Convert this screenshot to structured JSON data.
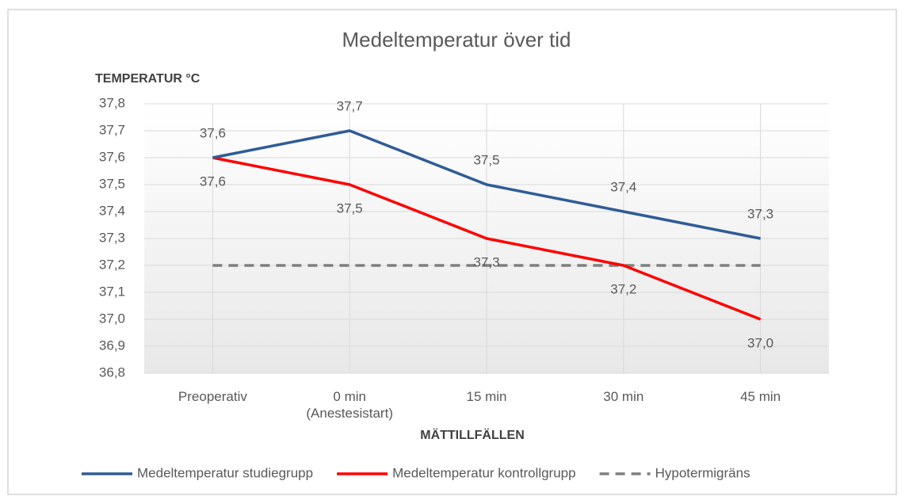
{
  "chart_data": {
    "type": "line",
    "title": "Medeltemperatur över tid",
    "y_label": "TEMPERATUR °C",
    "x_label": "MÄTTILLFÄLLEN",
    "categories": [
      "Preoperativ",
      "0 min\n(Anestesistart)",
      "15 min",
      "30 min",
      "45 min"
    ],
    "series": [
      {
        "name": "Medeltemperatur studiegrupp",
        "color": "#2f5c96",
        "values": [
          37.6,
          37.7,
          37.5,
          37.4,
          37.3
        ],
        "value_labels": [
          "37,6",
          "37,7",
          "37,5",
          "37,4",
          "37,3"
        ],
        "label_position": "above"
      },
      {
        "name": "Medeltemperatur kontrollgrupp",
        "color": "#ff0000",
        "values": [
          37.6,
          37.5,
          37.3,
          37.2,
          37.0
        ],
        "value_labels": [
          "37,6",
          "37,5",
          "37,3",
          "37,2",
          "37,0"
        ],
        "label_position": "below"
      },
      {
        "name": "Hypotermigräns",
        "color": "#7f7f7f",
        "dashed": true,
        "values": [
          37.2,
          37.2,
          37.2,
          37.2,
          37.2
        ]
      }
    ],
    "ylim": [
      36.8,
      37.8
    ],
    "yticks": [
      {
        "value": 36.8,
        "label": "36,8"
      },
      {
        "value": 36.9,
        "label": "36,9"
      },
      {
        "value": 37.0,
        "label": "37,0"
      },
      {
        "value": 37.1,
        "label": "37,1"
      },
      {
        "value": 37.2,
        "label": "37,2"
      },
      {
        "value": 37.3,
        "label": "37,3"
      },
      {
        "value": 37.4,
        "label": "37,4"
      },
      {
        "value": 37.5,
        "label": "37,5"
      },
      {
        "value": 37.6,
        "label": "37,6"
      },
      {
        "value": 37.7,
        "label": "37,7"
      },
      {
        "value": 37.8,
        "label": "37,8"
      }
    ],
    "grid": true,
    "legend": "bottom"
  }
}
